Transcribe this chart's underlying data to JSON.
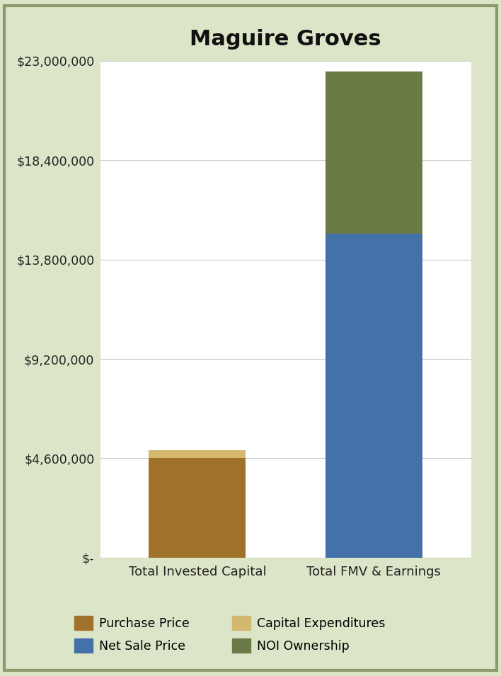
{
  "title": "Maguire Groves",
  "categories": [
    "Total Invested Capital",
    "Total FMV & Earnings"
  ],
  "purchase_price": 4600000,
  "capital_expenditures": 380000,
  "net_sale_price": 15000000,
  "noi_ownership": 7500000,
  "colors": {
    "purchase_price": "#A0712A",
    "capital_expenditures": "#D4B870",
    "net_sale_price": "#4472A8",
    "noi_ownership": "#6B7B45"
  },
  "ylim": [
    0,
    23000000
  ],
  "yticks": [
    0,
    4600000,
    9200000,
    13800000,
    18400000,
    23000000
  ],
  "ytick_labels": [
    "$-",
    "$4,600,000",
    "$9,200,000",
    "$13,800,000",
    "$18,400,000",
    "$23,000,000"
  ],
  "background_color": "#FFFFFF",
  "outer_background": "#DDE5C8",
  "border_color": "#8A9A6A",
  "title_fontsize": 22,
  "legend_labels": [
    "Purchase Price",
    "Net Sale Price",
    "Capital Expenditures",
    "NOI Ownership"
  ],
  "bar_width": 0.55
}
